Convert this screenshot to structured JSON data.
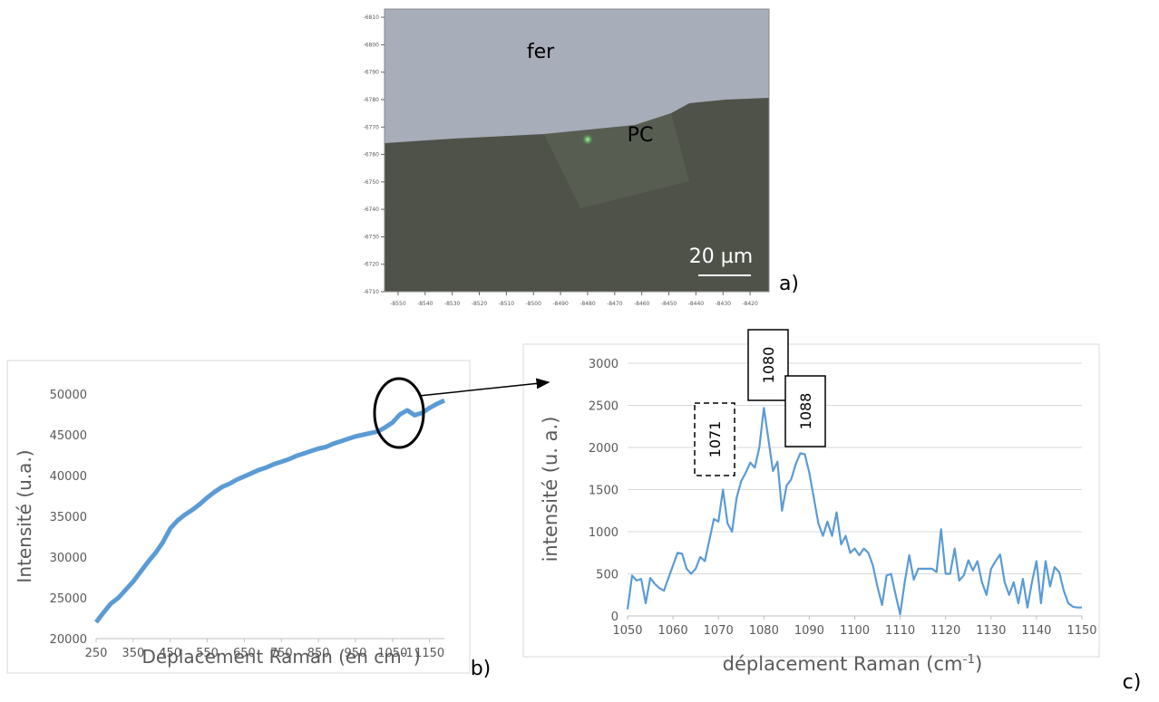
{
  "chart_data": [
    {
      "type": "image",
      "panel_label": "a)",
      "annotations": [
        {
          "text": "fer"
        },
        {
          "text": "PC"
        },
        {
          "text": "20 µm"
        }
      ],
      "xlim": [
        -8555,
        -8413
      ],
      "xticks": [
        -8550,
        -8540,
        -8530,
        -8520,
        -8510,
        -8500,
        -8490,
        -8480,
        -8470,
        -8460,
        -8450,
        -8440,
        -8430,
        -8420
      ],
      "ylim": [
        -6710,
        -6813
      ],
      "yticks": [
        -6810,
        -6800,
        -6790,
        -6780,
        -6770,
        -6760,
        -6750,
        -6740,
        -6730,
        -6720,
        -6710
      ]
    },
    {
      "type": "line",
      "panel_label": "b)",
      "color": "#5b9bd5",
      "y_label": "Intensité (u.a.)",
      "x_label": [
        "Déplacement Raman (en cm",
        "-1",
        ")"
      ],
      "xlim": [
        250,
        1190
      ],
      "xticks": [
        250,
        350,
        450,
        550,
        650,
        750,
        850,
        950,
        1050,
        1150
      ],
      "ylim": [
        20000,
        50000
      ],
      "yticks": [
        20000,
        25000,
        30000,
        35000,
        40000,
        45000,
        50000
      ],
      "grid": false,
      "x": [
        250,
        270,
        290,
        310,
        330,
        350,
        370,
        390,
        410,
        430,
        450,
        470,
        490,
        510,
        530,
        550,
        570,
        590,
        610,
        630,
        650,
        670,
        690,
        710,
        730,
        750,
        770,
        790,
        810,
        830,
        850,
        870,
        890,
        910,
        930,
        950,
        970,
        990,
        1010,
        1030,
        1050,
        1070,
        1090,
        1110,
        1130,
        1150,
        1170,
        1190
      ],
      "values": [
        22000,
        23200,
        24300,
        25000,
        26000,
        27000,
        28200,
        29400,
        30500,
        31800,
        33500,
        34500,
        35200,
        35800,
        36500,
        37300,
        38000,
        38600,
        39000,
        39500,
        39900,
        40300,
        40700,
        41000,
        41400,
        41700,
        42000,
        42400,
        42700,
        43000,
        43300,
        43500,
        43900,
        44200,
        44500,
        44800,
        45000,
        45200,
        45400,
        45900,
        46500,
        47500,
        48000,
        47400,
        47700,
        48300,
        48800,
        49200
      ]
    },
    {
      "type": "line",
      "panel_label": "c)",
      "color": "#5b9bd5",
      "y_label": "intensité (u. a.)",
      "x_label": [
        "déplacement Raman (cm",
        "-1",
        ")"
      ],
      "annotations": [
        {
          "text": "1071"
        },
        {
          "text": "1080"
        },
        {
          "text": "1088"
        }
      ],
      "xlim": [
        1050,
        1150
      ],
      "xticks": [
        1050,
        1060,
        1070,
        1080,
        1090,
        1100,
        1110,
        1120,
        1130,
        1140,
        1150
      ],
      "ylim": [
        0,
        3000
      ],
      "yticks": [
        0,
        500,
        1000,
        1500,
        2000,
        2500,
        3000
      ],
      "grid": true,
      "x": [
        1050,
        1051,
        1052,
        1053,
        1054,
        1055,
        1056,
        1057,
        1058,
        1059,
        1060,
        1061,
        1062,
        1063,
        1064,
        1065,
        1066,
        1067,
        1068,
        1069,
        1070,
        1071,
        1072,
        1073,
        1074,
        1075,
        1076,
        1077,
        1078,
        1079,
        1080,
        1081,
        1082,
        1083,
        1084,
        1085,
        1086,
        1087,
        1088,
        1089,
        1090,
        1091,
        1092,
        1093,
        1094,
        1095,
        1096,
        1097,
        1098,
        1099,
        1100,
        1101,
        1102,
        1103,
        1104,
        1105,
        1106,
        1107,
        1108,
        1109,
        1110,
        1111,
        1112,
        1113,
        1114,
        1115,
        1116,
        1117,
        1118,
        1119,
        1120,
        1121,
        1122,
        1123,
        1124,
        1125,
        1126,
        1127,
        1128,
        1129,
        1130,
        1131,
        1132,
        1133,
        1134,
        1135,
        1136,
        1137,
        1138,
        1139,
        1140,
        1141,
        1142,
        1143,
        1144,
        1145,
        1146,
        1147,
        1148,
        1149,
        1150
      ],
      "values": [
        80,
        480,
        420,
        440,
        150,
        450,
        380,
        330,
        300,
        450,
        600,
        750,
        740,
        560,
        500,
        560,
        700,
        650,
        900,
        1150,
        1120,
        1500,
        1100,
        1000,
        1400,
        1600,
        1700,
        1820,
        1760,
        2000,
        2470,
        2100,
        1720,
        1830,
        1250,
        1550,
        1620,
        1800,
        1930,
        1920,
        1700,
        1400,
        1100,
        950,
        1120,
        950,
        1230,
        850,
        950,
        750,
        800,
        720,
        800,
        750,
        600,
        350,
        130,
        480,
        500,
        250,
        20,
        400,
        720,
        430,
        560,
        560,
        560,
        560,
        520,
        1030,
        500,
        500,
        800,
        420,
        480,
        660,
        540,
        650,
        400,
        250,
        560,
        650,
        730,
        400,
        250,
        400,
        150,
        440,
        100,
        400,
        650,
        150,
        650,
        350,
        580,
        520,
        300,
        150,
        110,
        100,
        100
      ]
    }
  ]
}
